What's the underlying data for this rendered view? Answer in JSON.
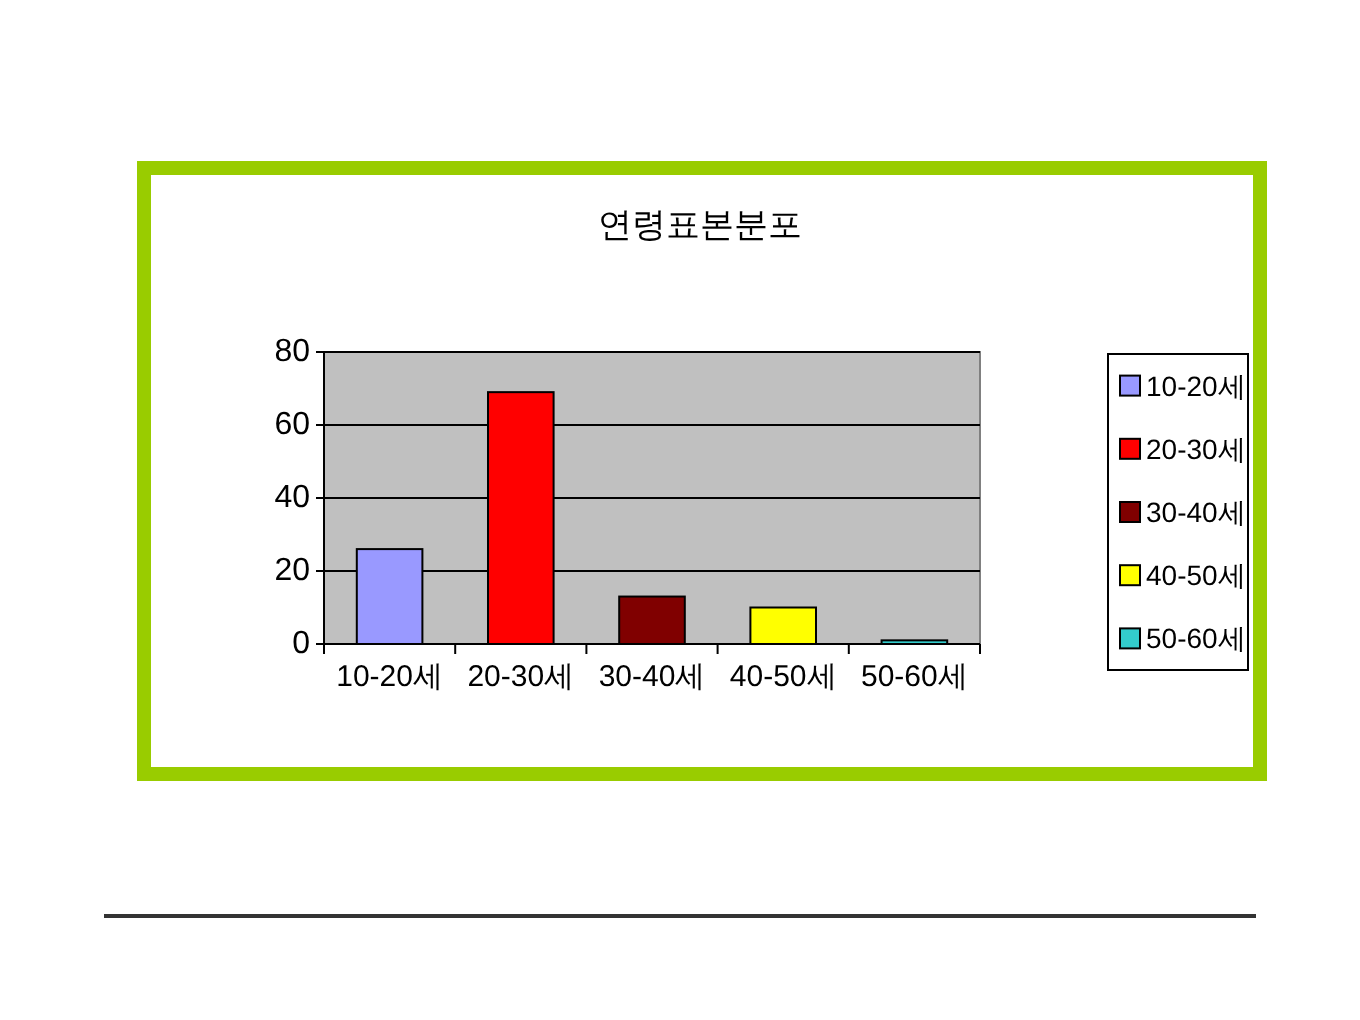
{
  "chart_data": {
    "type": "bar",
    "title": "연령표본분포",
    "categories": [
      "10-20세",
      "20-30세",
      "30-40세",
      "40-50세",
      "50-60세"
    ],
    "series": [
      {
        "name": "10-20세",
        "color": "#9999ff",
        "values": [
          26,
          null,
          null,
          null,
          null
        ]
      },
      {
        "name": "20-30세",
        "color": "#ff0000",
        "values": [
          null,
          69,
          null,
          null,
          null
        ]
      },
      {
        "name": "30-40세",
        "color": "#800000",
        "values": [
          null,
          null,
          13,
          null,
          null
        ]
      },
      {
        "name": "40-50세",
        "color": "#ffff00",
        "values": [
          null,
          null,
          null,
          10,
          null
        ]
      },
      {
        "name": "50-60세",
        "color": "#33cccc",
        "values": [
          null,
          null,
          null,
          null,
          1
        ]
      }
    ],
    "ylim": [
      0,
      80
    ],
    "yticks": [
      0,
      20,
      40,
      60,
      80
    ],
    "grid": "y",
    "legend": "right"
  }
}
